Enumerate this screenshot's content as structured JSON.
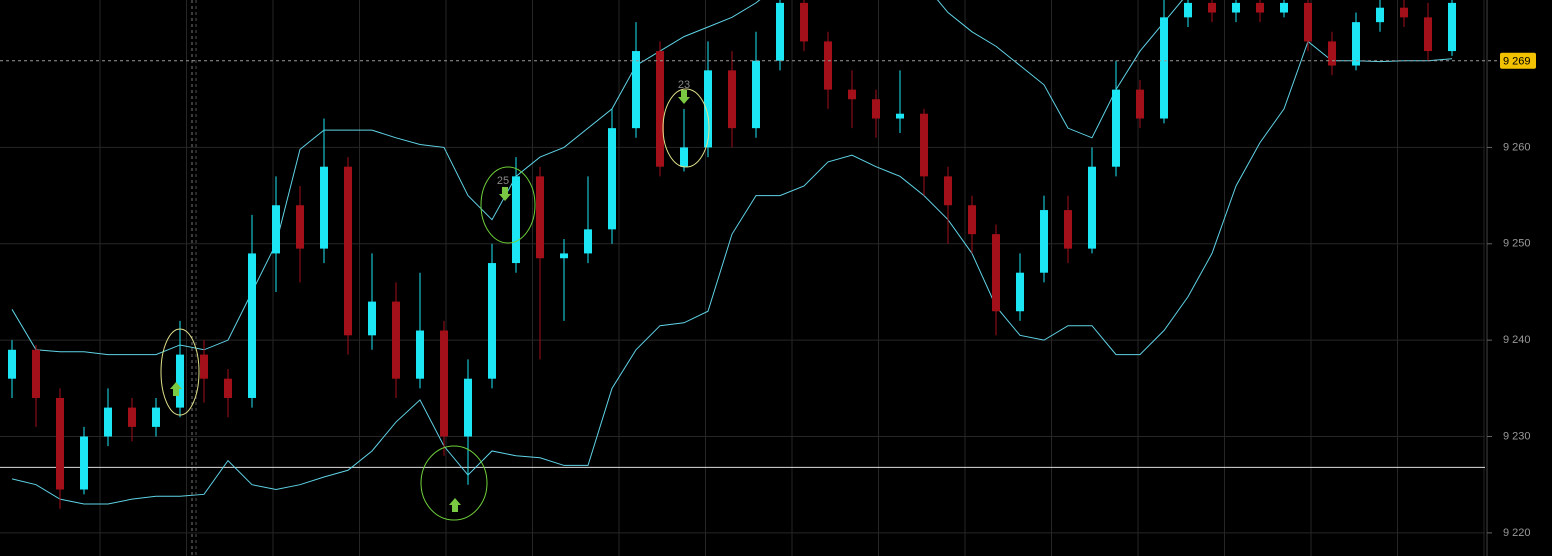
{
  "chart_data": {
    "type": "candlestick",
    "open": [
      9236,
      9239,
      9234,
      9224.5,
      9230,
      9233,
      9231,
      9233,
      9238.5,
      9236,
      9234,
      9249,
      9254,
      9249.5,
      9258,
      9240.5,
      9244,
      9236,
      9241,
      9230,
      9236,
      9248,
      9257,
      9248.5,
      9249,
      9251.5,
      9262,
      9270,
      9258,
      9260,
      9268,
      9262,
      9269,
      9275,
      9271,
      9266,
      9265,
      9263,
      9263.5,
      9257,
      9254,
      9251,
      9243,
      9247,
      9253.5,
      9249.5,
      9258,
      9266,
      9263,
      9273.5,
      9275,
      9274,
      9275,
      9274,
      9275,
      9271,
      9268.5,
      9273,
      9274.5,
      9273.5,
      9270
    ],
    "high": [
      9240,
      9239.5,
      9235,
      9231,
      9235,
      9234,
      9234,
      9242,
      9240,
      9237,
      9253,
      9257,
      9256,
      9263,
      9259,
      9249,
      9246,
      9247,
      9242,
      9238,
      9250,
      9259,
      9258,
      9250.5,
      9257,
      9264,
      9273,
      9271,
      9264,
      9271,
      9270,
      9272,
      9277,
      9276,
      9272,
      9268,
      9266,
      9268,
      9264,
      9258,
      9255,
      9252,
      9249,
      9255,
      9255,
      9260,
      9269,
      9267,
      9276,
      9277,
      9277,
      9277,
      9277,
      9277,
      9277,
      9272,
      9274,
      9277,
      9277,
      9275,
      9277
    ],
    "low": [
      9234,
      9231,
      9222.5,
      9224,
      9229,
      9229.5,
      9230,
      9232,
      9233.5,
      9232,
      9233,
      9245,
      9246,
      9248,
      9238.5,
      9239,
      9234,
      9235,
      9228,
      9225,
      9235,
      9247,
      9238,
      9242,
      9248,
      9250,
      9261,
      9257,
      9257.5,
      9259,
      9260,
      9261,
      9268,
      9270,
      9264,
      9262,
      9261,
      9261.5,
      9255,
      9250,
      9249,
      9240.5,
      9242,
      9246,
      9248,
      9249,
      9257,
      9262,
      9262.5,
      9272.5,
      9273,
      9273,
      9273,
      9273.5,
      9270,
      9267.5,
      9268,
      9272,
      9272.5,
      9269,
      9269.5
    ],
    "close": [
      9239,
      9234,
      9224.5,
      9230,
      9233,
      9231,
      9233,
      9238.5,
      9236,
      9234,
      9249,
      9254,
      9249.5,
      9258,
      9240.5,
      9244,
      9236,
      9241,
      9230,
      9236,
      9248,
      9257,
      9248.5,
      9249,
      9251.5,
      9262,
      9270,
      9258,
      9260,
      9268,
      9262,
      9269,
      9275,
      9271,
      9266,
      9265,
      9263,
      9263.5,
      9257,
      9254,
      9251,
      9243,
      9247,
      9253.5,
      9249.5,
      9258,
      9266,
      9263,
      9273.5,
      9275,
      9274,
      9275,
      9274,
      9275,
      9271,
      9268.5,
      9273,
      9274.5,
      9273.5,
      9270,
      9275
    ],
    "upper_band": [
      9243.2,
      9239,
      9238.8,
      9238.8,
      9238.5,
      9238.5,
      9238.5,
      9239.5,
      9239,
      9240,
      9245,
      9250,
      9259.8,
      9261.8,
      9261.8,
      9261.8,
      9261,
      9260.3,
      9260,
      9255,
      9252.5,
      9257,
      9259,
      9260,
      9262,
      9264,
      9268.5,
      9270,
      9271.5,
      9272.5,
      9273.5,
      9275,
      9277,
      9277,
      9277,
      9277,
      9277,
      9277,
      9277,
      9274,
      9272,
      9270.5,
      9268.5,
      9266.5,
      9262,
      9261,
      9266,
      9270,
      9273,
      9276,
      9278,
      9278,
      9278,
      9278,
      9278,
      9278,
      9278,
      9278,
      9278,
      9278,
      9278
    ],
    "lower_band": [
      9225.6,
      9225,
      9223.5,
      9223,
      9223,
      9223.5,
      9223.8,
      9223.8,
      9224,
      9227.5,
      9225,
      9224.5,
      9225,
      9225.8,
      9226.5,
      9228.5,
      9231.5,
      9233.8,
      9229,
      9226,
      9228.5,
      9228,
      9227.8,
      9227,
      9227,
      9235,
      9239,
      9241.5,
      9241.8,
      9243,
      9251,
      9255,
      9255,
      9256,
      9258.5,
      9259.2,
      9258,
      9257,
      9255,
      9252.5,
      9249,
      9243.5,
      9240.5,
      9240,
      9241.5,
      9241.5,
      9238.5,
      9238.5,
      9241,
      9244.5,
      9249,
      9256,
      9260.5,
      9264,
      9271,
      9269,
      9269,
      9268.9,
      9269,
      9269,
      9269.2
    ],
    "up_color": "#1de6f4",
    "down_color": "#a3101a",
    "band_color": "#5fd3e6",
    "ylim": [
      9217.6,
      9275.3
    ],
    "yticks": [
      {
        "value": 9220,
        "label": "9 220"
      },
      {
        "value": 9230,
        "label": "9 230"
      },
      {
        "value": 9240,
        "label": "9 240"
      },
      {
        "value": 9250,
        "label": "9 250"
      },
      {
        "value": 9260,
        "label": "9 260"
      }
    ],
    "grid": true,
    "hline": 9226.8,
    "price_tag": {
      "value": 9269,
      "label": "9 269"
    },
    "annotations": [
      "25",
      "23"
    ]
  }
}
